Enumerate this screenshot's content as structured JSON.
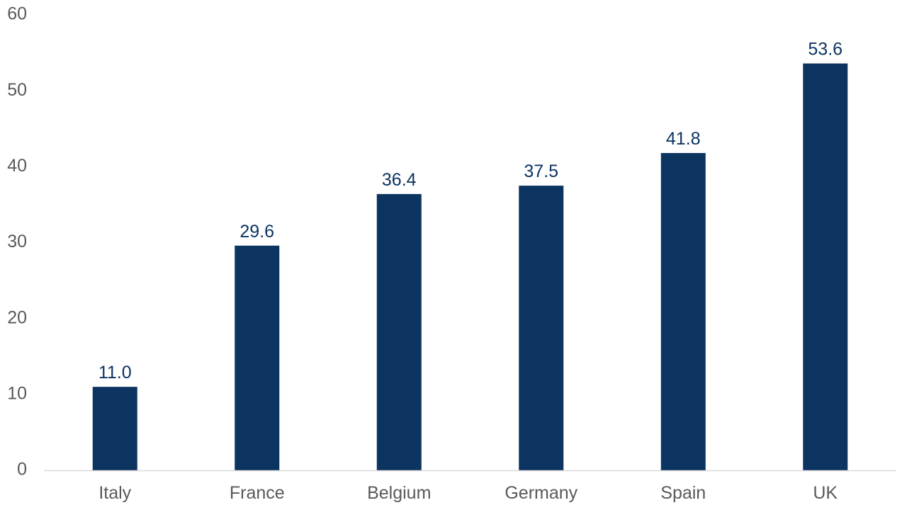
{
  "chart_data": {
    "type": "bar",
    "categories": [
      "Italy",
      "France",
      "Belgium",
      "Germany",
      "Spain",
      "UK"
    ],
    "values": [
      11.0,
      29.6,
      36.4,
      37.5,
      41.8,
      53.6
    ],
    "data_labels": [
      "11.0",
      "29.6",
      "36.4",
      "37.5",
      "41.8",
      "53.6"
    ],
    "y_ticks": [
      "0",
      "10",
      "20",
      "30",
      "40",
      "50",
      "60"
    ],
    "title": "",
    "xlabel": "",
    "ylabel": "",
    "ylim": [
      0,
      60
    ],
    "grid": false,
    "legend": "none",
    "colors": {
      "bar": "#0c3461",
      "axis": "#d9d9d9",
      "tick_text": "#595959",
      "data_label_text": "#0c3461"
    }
  }
}
